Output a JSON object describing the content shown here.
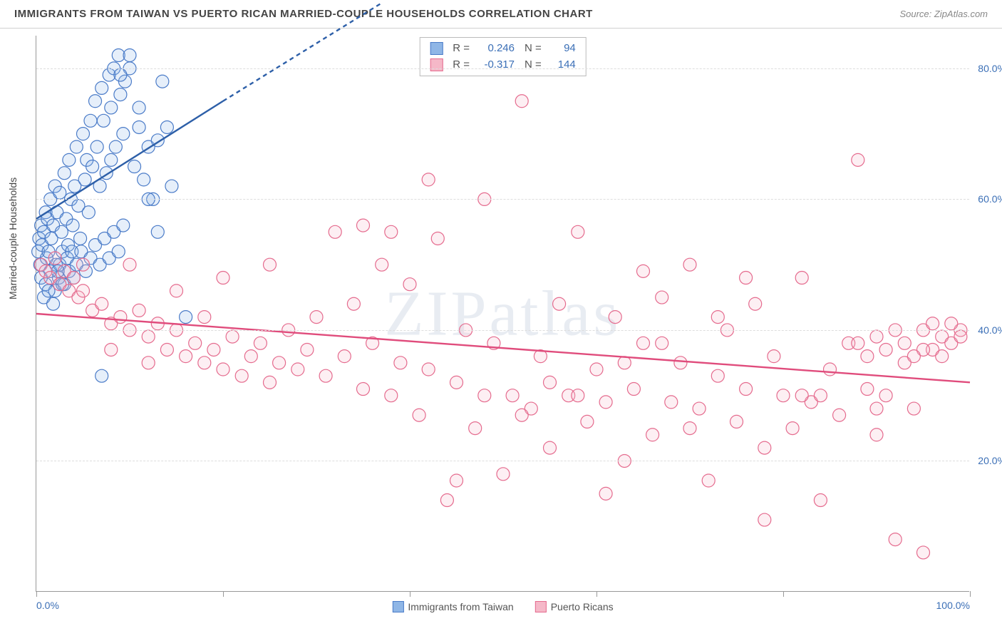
{
  "title": "IMMIGRANTS FROM TAIWAN VS PUERTO RICAN MARRIED-COUPLE HOUSEHOLDS CORRELATION CHART",
  "source": "Source: ZipAtlas.com",
  "y_axis_label": "Married-couple Households",
  "watermark": "ZIPatlas",
  "chart": {
    "type": "scatter",
    "xlim": [
      0,
      100
    ],
    "ylim": [
      0,
      85
    ],
    "y_ticks": [
      20,
      40,
      60,
      80
    ],
    "y_tick_labels": [
      "20.0%",
      "40.0%",
      "60.0%",
      "80.0%"
    ],
    "x_ticks": [
      0,
      20,
      40,
      60,
      80,
      100
    ],
    "x_tick_labels_shown": {
      "0": "0.0%",
      "100": "100.0%"
    },
    "background_color": "#ffffff",
    "grid_color": "#dddddd",
    "axis_color": "#999999",
    "tick_label_color": "#3b6fb6",
    "marker_radius": 9,
    "marker_opacity": 0.22,
    "series": [
      {
        "name": "Immigrants from Taiwan",
        "color_fill": "#8fb6e6",
        "color_stroke": "#4a7bc8",
        "r": 0.246,
        "n": 94,
        "trend": {
          "x1": 0,
          "y1": 57,
          "x2": 20,
          "y2": 75,
          "dash_x2": 37,
          "dash_y2": 90,
          "color": "#2d5fa8",
          "width": 2.4
        },
        "points": [
          [
            0.2,
            52
          ],
          [
            0.3,
            54
          ],
          [
            0.4,
            50
          ],
          [
            0.5,
            56
          ],
          [
            0.6,
            53
          ],
          [
            0.8,
            55
          ],
          [
            1.0,
            58
          ],
          [
            1.1,
            51
          ],
          [
            1.2,
            57
          ],
          [
            1.3,
            52
          ],
          [
            1.5,
            60
          ],
          [
            1.6,
            54
          ],
          [
            1.8,
            56
          ],
          [
            2.0,
            62
          ],
          [
            2.1,
            50
          ],
          [
            2.2,
            58
          ],
          [
            2.4,
            48
          ],
          [
            2.5,
            61
          ],
          [
            2.7,
            55
          ],
          [
            2.8,
            52
          ],
          [
            3.0,
            64
          ],
          [
            3.2,
            57
          ],
          [
            3.4,
            53
          ],
          [
            3.5,
            66
          ],
          [
            3.7,
            60
          ],
          [
            3.9,
            56
          ],
          [
            4.1,
            62
          ],
          [
            4.3,
            68
          ],
          [
            4.5,
            59
          ],
          [
            4.7,
            54
          ],
          [
            5.0,
            70
          ],
          [
            5.2,
            63
          ],
          [
            5.4,
            66
          ],
          [
            5.6,
            58
          ],
          [
            5.8,
            72
          ],
          [
            6.0,
            65
          ],
          [
            6.3,
            75
          ],
          [
            6.5,
            68
          ],
          [
            6.8,
            62
          ],
          [
            7.0,
            77
          ],
          [
            7.2,
            72
          ],
          [
            7.5,
            64
          ],
          [
            7.8,
            79
          ],
          [
            8.0,
            74
          ],
          [
            8.3,
            80
          ],
          [
            8.5,
            68
          ],
          [
            8.8,
            82
          ],
          [
            9.0,
            76
          ],
          [
            9.3,
            70
          ],
          [
            9.5,
            78
          ],
          [
            10.0,
            80
          ],
          [
            10.5,
            65
          ],
          [
            11.0,
            71
          ],
          [
            11.5,
            63
          ],
          [
            12.0,
            68
          ],
          [
            12.5,
            60
          ],
          [
            13.0,
            55
          ],
          [
            13.5,
            78
          ],
          [
            14.0,
            71
          ],
          [
            14.5,
            62
          ],
          [
            0.5,
            48
          ],
          [
            1.0,
            47
          ],
          [
            1.5,
            49
          ],
          [
            2.0,
            46
          ],
          [
            2.5,
            50
          ],
          [
            3.0,
            47
          ],
          [
            3.5,
            49
          ],
          [
            4.0,
            48
          ],
          [
            0.8,
            45
          ],
          [
            1.3,
            46
          ],
          [
            1.8,
            44
          ],
          [
            2.3,
            49
          ],
          [
            2.8,
            47
          ],
          [
            3.3,
            51
          ],
          [
            3.8,
            52
          ],
          [
            4.3,
            50
          ],
          [
            4.8,
            52
          ],
          [
            5.3,
            49
          ],
          [
            5.8,
            51
          ],
          [
            6.3,
            53
          ],
          [
            6.8,
            50
          ],
          [
            7.3,
            54
          ],
          [
            7.8,
            51
          ],
          [
            8.3,
            55
          ],
          [
            8.8,
            52
          ],
          [
            9.3,
            56
          ],
          [
            16,
            42
          ],
          [
            7,
            33
          ],
          [
            13,
            69
          ],
          [
            11,
            74
          ],
          [
            10,
            82
          ],
          [
            9,
            79
          ],
          [
            8,
            66
          ],
          [
            12,
            60
          ]
        ]
      },
      {
        "name": "Puerto Ricans",
        "color_fill": "#f5b8c8",
        "color_stroke": "#e56b8e",
        "r": -0.317,
        "n": 144,
        "trend": {
          "x1": 0,
          "y1": 42.5,
          "x2": 100,
          "y2": 32,
          "color": "#e04c7c",
          "width": 2.4
        },
        "points": [
          [
            0.5,
            50
          ],
          [
            1,
            49
          ],
          [
            1.5,
            48
          ],
          [
            2,
            51
          ],
          [
            2.5,
            47
          ],
          [
            3,
            49
          ],
          [
            3.5,
            46
          ],
          [
            4,
            48
          ],
          [
            4.5,
            45
          ],
          [
            5,
            46
          ],
          [
            6,
            43
          ],
          [
            7,
            44
          ],
          [
            8,
            41
          ],
          [
            9,
            42
          ],
          [
            10,
            40
          ],
          [
            11,
            43
          ],
          [
            12,
            39
          ],
          [
            13,
            41
          ],
          [
            14,
            37
          ],
          [
            15,
            40
          ],
          [
            16,
            36
          ],
          [
            17,
            38
          ],
          [
            18,
            35
          ],
          [
            19,
            37
          ],
          [
            20,
            34
          ],
          [
            21,
            39
          ],
          [
            22,
            33
          ],
          [
            23,
            36
          ],
          [
            24,
            38
          ],
          [
            25,
            32
          ],
          [
            26,
            35
          ],
          [
            27,
            40
          ],
          [
            28,
            34
          ],
          [
            29,
            37
          ],
          [
            30,
            42
          ],
          [
            31,
            33
          ],
          [
            32,
            55
          ],
          [
            33,
            36
          ],
          [
            34,
            44
          ],
          [
            35,
            31
          ],
          [
            36,
            38
          ],
          [
            37,
            50
          ],
          [
            38,
            30
          ],
          [
            39,
            35
          ],
          [
            40,
            47
          ],
          [
            41,
            27
          ],
          [
            42,
            34
          ],
          [
            43,
            54
          ],
          [
            44,
            14
          ],
          [
            45,
            32
          ],
          [
            46,
            40
          ],
          [
            47,
            25
          ],
          [
            48,
            60
          ],
          [
            49,
            38
          ],
          [
            50,
            18
          ],
          [
            51,
            30
          ],
          [
            52,
            75
          ],
          [
            53,
            28
          ],
          [
            54,
            36
          ],
          [
            55,
            22
          ],
          [
            56,
            44
          ],
          [
            57,
            30
          ],
          [
            58,
            55
          ],
          [
            59,
            26
          ],
          [
            60,
            34
          ],
          [
            61,
            15
          ],
          [
            62,
            42
          ],
          [
            63,
            20
          ],
          [
            64,
            31
          ],
          [
            65,
            38
          ],
          [
            66,
            24
          ],
          [
            67,
            45
          ],
          [
            68,
            29
          ],
          [
            69,
            35
          ],
          [
            70,
            50
          ],
          [
            71,
            28
          ],
          [
            72,
            17
          ],
          [
            73,
            33
          ],
          [
            74,
            40
          ],
          [
            75,
            26
          ],
          [
            76,
            31
          ],
          [
            77,
            44
          ],
          [
            78,
            22
          ],
          [
            79,
            36
          ],
          [
            80,
            30
          ],
          [
            81,
            25
          ],
          [
            82,
            48
          ],
          [
            83,
            29
          ],
          [
            84,
            14
          ],
          [
            85,
            34
          ],
          [
            86,
            27
          ],
          [
            87,
            38
          ],
          [
            88,
            66
          ],
          [
            89,
            31
          ],
          [
            90,
            24
          ],
          [
            91,
            30
          ],
          [
            92,
            8
          ],
          [
            93,
            35
          ],
          [
            94,
            28
          ],
          [
            95,
            40
          ],
          [
            96,
            37
          ],
          [
            97,
            39
          ],
          [
            98,
            38
          ],
          [
            99,
            40
          ],
          [
            95,
            37
          ],
          [
            96,
            41
          ],
          [
            97,
            36
          ],
          [
            98,
            41
          ],
          [
            99,
            39
          ],
          [
            94,
            36
          ],
          [
            93,
            38
          ],
          [
            92,
            40
          ],
          [
            91,
            37
          ],
          [
            90,
            39
          ],
          [
            89,
            36
          ],
          [
            88,
            38
          ],
          [
            76,
            48
          ],
          [
            65,
            49
          ],
          [
            42,
            63
          ],
          [
            48,
            30
          ],
          [
            55,
            32
          ],
          [
            38,
            55
          ],
          [
            25,
            50
          ],
          [
            20,
            48
          ],
          [
            15,
            46
          ],
          [
            10,
            50
          ],
          [
            5,
            50
          ],
          [
            8,
            37
          ],
          [
            12,
            35
          ],
          [
            18,
            42
          ],
          [
            35,
            56
          ],
          [
            45,
            17
          ],
          [
            52,
            27
          ],
          [
            58,
            30
          ],
          [
            63,
            35
          ],
          [
            70,
            25
          ],
          [
            78,
            11
          ],
          [
            84,
            30
          ],
          [
            90,
            28
          ],
          [
            95,
            6
          ],
          [
            82,
            30
          ],
          [
            73,
            42
          ],
          [
            67,
            38
          ],
          [
            61,
            29
          ]
        ]
      }
    ]
  },
  "legend_bottom": [
    {
      "label": "Immigrants from Taiwan",
      "fill": "#8fb6e6",
      "stroke": "#4a7bc8"
    },
    {
      "label": "Puerto Ricans",
      "fill": "#f5b8c8",
      "stroke": "#e56b8e"
    }
  ],
  "stats": [
    {
      "fill": "#8fb6e6",
      "stroke": "#4a7bc8",
      "r_label": "R =",
      "r": "0.246",
      "n_label": "N =",
      "n": "94",
      "text_color": "#3b6fb6"
    },
    {
      "fill": "#f5b8c8",
      "stroke": "#e56b8e",
      "r_label": "R =",
      "r": "-0.317",
      "n_label": "N =",
      "n": "144",
      "text_color": "#3b6fb6"
    }
  ]
}
